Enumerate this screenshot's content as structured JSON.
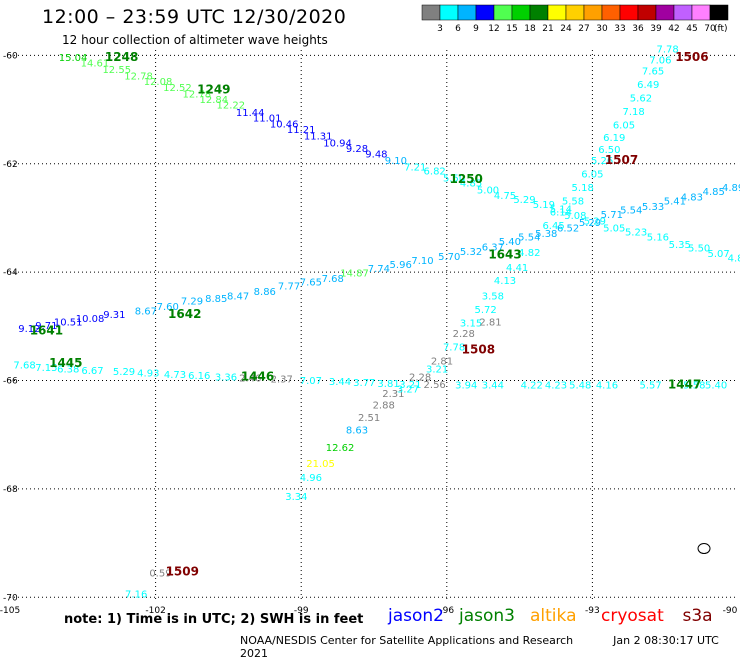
{
  "title": "12:00 – 23:59 UTC 12/30/2020",
  "subtitle": "12 hour collection of altimeter wave heights",
  "colorbar": {
    "unit": "(ft)",
    "ticks": [
      "3",
      "6",
      "9",
      "12",
      "15",
      "18",
      "21",
      "24",
      "27",
      "30",
      "33",
      "36",
      "39",
      "42",
      "45",
      "70"
    ],
    "colors": [
      "#808080",
      "#00ffff",
      "#00b4ff",
      "#0000ff",
      "#50ff50",
      "#00d000",
      "#008000",
      "#ffff00",
      "#ffd000",
      "#ffa000",
      "#ff6000",
      "#ff0000",
      "#c00000",
      "#a000a0",
      "#c060ff",
      "#ff80ff",
      "#000000"
    ]
  },
  "axes": {
    "lon_labels": [
      {
        "value": -105,
        "text": "-105"
      },
      {
        "value": -102,
        "text": "-102"
      },
      {
        "value": -99,
        "text": "-99"
      },
      {
        "value": -96,
        "text": "-96"
      },
      {
        "value": -93,
        "text": "-93"
      },
      {
        "value": -90,
        "text": "-90"
      }
    ],
    "lat_labels": [
      {
        "value": -60,
        "text": "-60"
      },
      {
        "value": -62,
        "text": "-62"
      },
      {
        "value": -64,
        "text": "-64"
      },
      {
        "value": -66,
        "text": "-66"
      },
      {
        "value": -68,
        "text": "-68"
      },
      {
        "value": -70,
        "text": "-70"
      }
    ],
    "lon_range": [
      -105,
      -90
    ],
    "lat_range": [
      -70.05,
      -59.9
    ]
  },
  "time_labels": [
    {
      "text": "1248",
      "lon": -102.7,
      "lat": -60.1,
      "color": "#008000"
    },
    {
      "text": "1249",
      "lon": -100.8,
      "lat": -60.7,
      "color": "#008000"
    },
    {
      "text": "1250",
      "lon": -95.6,
      "lat": -62.35,
      "color": "#008000"
    },
    {
      "text": "1643",
      "lon": -94.8,
      "lat": -63.75,
      "color": "#008000"
    },
    {
      "text": "1642",
      "lon": -101.4,
      "lat": -64.85,
      "color": "#008000"
    },
    {
      "text": "1641",
      "lon": -104.25,
      "lat": -65.15,
      "color": "#008000"
    },
    {
      "text": "1445",
      "lon": -103.85,
      "lat": -65.75,
      "color": "#008000"
    },
    {
      "text": "1446",
      "lon": -99.9,
      "lat": -66.0,
      "color": "#008000"
    },
    {
      "text": "1447",
      "lon": -91.1,
      "lat": -66.15,
      "color": "#008000"
    },
    {
      "text": "1506",
      "lon": -90.95,
      "lat": -60.1,
      "color": "#800000"
    },
    {
      "text": "1507",
      "lon": -92.4,
      "lat": -62.0,
      "color": "#800000"
    },
    {
      "text": "1508",
      "lon": -95.35,
      "lat": -65.5,
      "color": "#800000"
    },
    {
      "text": "1509",
      "lon": -101.45,
      "lat": -69.6,
      "color": "#800000"
    }
  ],
  "tracks": [
    {
      "name": "jason3-track-1",
      "points": [
        {
          "t": "15.04",
          "lon": -103.7,
          "lat": -60.1,
          "c": "#00d000"
        },
        {
          "t": "14.61",
          "lon": -103.25,
          "lat": -60.2,
          "c": "#50ff50"
        },
        {
          "t": "12.55",
          "lon": -102.8,
          "lat": -60.32,
          "c": "#50ff50"
        },
        {
          "t": "12.78",
          "lon": -102.35,
          "lat": -60.44,
          "c": "#50ff50"
        },
        {
          "t": "12.08",
          "lon": -101.95,
          "lat": -60.55,
          "c": "#50ff50"
        },
        {
          "t": "12.52",
          "lon": -101.55,
          "lat": -60.66,
          "c": "#50ff50"
        },
        {
          "t": "12.78",
          "lon": -101.15,
          "lat": -60.78,
          "c": "#50ff50"
        },
        {
          "t": "12.84",
          "lon": -100.8,
          "lat": -60.88,
          "c": "#50ff50"
        },
        {
          "t": "12.22",
          "lon": -100.45,
          "lat": -60.98,
          "c": "#50ff50"
        },
        {
          "t": "11.44",
          "lon": -100.05,
          "lat": -61.12,
          "c": "#0000ff"
        },
        {
          "t": "11.01",
          "lon": -99.7,
          "lat": -61.22,
          "c": "#0000ff"
        },
        {
          "t": "10.46",
          "lon": -99.35,
          "lat": -61.33,
          "c": "#0000ff"
        },
        {
          "t": "11.21",
          "lon": -99.0,
          "lat": -61.43,
          "c": "#0000ff"
        },
        {
          "t": "11.31",
          "lon": -98.65,
          "lat": -61.55,
          "c": "#0000ff"
        },
        {
          "t": "10.94",
          "lon": -98.25,
          "lat": -61.68,
          "c": "#0000ff"
        },
        {
          "t": "9.28",
          "lon": -97.85,
          "lat": -61.78,
          "c": "#0000ff"
        },
        {
          "t": "9.48",
          "lon": -97.45,
          "lat": -61.88,
          "c": "#0000ff"
        },
        {
          "t": "9.10",
          "lon": -97.05,
          "lat": -62.0,
          "c": "#00b4ff"
        },
        {
          "t": "7.21",
          "lon": -96.65,
          "lat": -62.12,
          "c": "#00ffff"
        },
        {
          "t": "6.82",
          "lon": -96.25,
          "lat": -62.2,
          "c": "#00ffff"
        },
        {
          "t": "5.50",
          "lon": -95.85,
          "lat": -62.33,
          "c": "#00ffff"
        },
        {
          "t": "4.85",
          "lon": -95.5,
          "lat": -62.42,
          "c": "#00ffff"
        },
        {
          "t": "5.00",
          "lon": -95.15,
          "lat": -62.55,
          "c": "#00ffff"
        },
        {
          "t": "4.75",
          "lon": -94.8,
          "lat": -62.65,
          "c": "#00ffff"
        },
        {
          "t": "5.29",
          "lon": -94.4,
          "lat": -62.72,
          "c": "#00ffff"
        },
        {
          "t": "5.19",
          "lon": -94.0,
          "lat": -62.82,
          "c": "#00ffff"
        },
        {
          "t": "5.14",
          "lon": -93.65,
          "lat": -62.9,
          "c": "#00ffff"
        },
        {
          "t": "5.08",
          "lon": -93.35,
          "lat": -63.02,
          "c": "#00ffff"
        },
        {
          "t": "5.29",
          "lon": -92.95,
          "lat": -63.12,
          "c": "#00ffff"
        },
        {
          "t": "5.05",
          "lon": -92.55,
          "lat": -63.25,
          "c": "#00ffff"
        },
        {
          "t": "5.23",
          "lon": -92.1,
          "lat": -63.32,
          "c": "#00ffff"
        },
        {
          "t": "5.16",
          "lon": -91.65,
          "lat": -63.42,
          "c": "#00ffff"
        },
        {
          "t": "5.35",
          "lon": -91.2,
          "lat": -63.55,
          "c": "#00ffff"
        },
        {
          "t": "5.50",
          "lon": -90.8,
          "lat": -63.62,
          "c": "#00ffff"
        },
        {
          "t": "5.07",
          "lon": -90.4,
          "lat": -63.72,
          "c": "#00ffff"
        },
        {
          "t": "4.8",
          "lon": -90.05,
          "lat": -63.8,
          "c": "#00ffff"
        }
      ]
    },
    {
      "name": "jason3-track-2",
      "points": [
        {
          "t": "9.12",
          "lon": -104.6,
          "lat": -65.1,
          "c": "#0000ff"
        },
        {
          "t": "9.71",
          "lon": -104.25,
          "lat": -65.05,
          "c": "#0000ff"
        },
        {
          "t": "10.51",
          "lon": -103.8,
          "lat": -64.98,
          "c": "#0000ff"
        },
        {
          "t": "10.08",
          "lon": -103.35,
          "lat": -64.92,
          "c": "#0000ff"
        },
        {
          "t": "9.31",
          "lon": -102.85,
          "lat": -64.85,
          "c": "#0000ff"
        },
        {
          "t": "8.67",
          "lon": -102.2,
          "lat": -64.78,
          "c": "#00b4ff"
        },
        {
          "t": "7.60",
          "lon": -101.75,
          "lat": -64.7,
          "c": "#00b4ff"
        },
        {
          "t": "7.29",
          "lon": -101.25,
          "lat": -64.6,
          "c": "#00b4ff"
        },
        {
          "t": "8.85",
          "lon": -100.75,
          "lat": -64.55,
          "c": "#00b4ff"
        },
        {
          "t": "8.47",
          "lon": -100.3,
          "lat": -64.5,
          "c": "#00b4ff"
        },
        {
          "t": "8.86",
          "lon": -99.75,
          "lat": -64.42,
          "c": "#00b4ff"
        },
        {
          "t": "7.77",
          "lon": -99.25,
          "lat": -64.32,
          "c": "#00b4ff"
        },
        {
          "t": "7.65",
          "lon": -98.8,
          "lat": -64.25,
          "c": "#00b4ff"
        },
        {
          "t": "7.68",
          "lon": -98.35,
          "lat": -64.18,
          "c": "#00b4ff"
        },
        {
          "t": "14.87",
          "lon": -97.9,
          "lat": -64.08,
          "c": "#50ff50"
        },
        {
          "t": "7.74",
          "lon": -97.4,
          "lat": -64.0,
          "c": "#00b4ff"
        },
        {
          "t": "5.96",
          "lon": -96.95,
          "lat": -63.92,
          "c": "#00b4ff"
        },
        {
          "t": "7.10",
          "lon": -96.5,
          "lat": -63.85,
          "c": "#00b4ff"
        },
        {
          "t": "5.70",
          "lon": -95.95,
          "lat": -63.78,
          "c": "#00b4ff"
        },
        {
          "t": "5.32",
          "lon": -95.5,
          "lat": -63.68,
          "c": "#00b4ff"
        },
        {
          "t": "6.37",
          "lon": -95.05,
          "lat": -63.6,
          "c": "#00b4ff"
        },
        {
          "t": "5.40",
          "lon": -94.7,
          "lat": -63.5,
          "c": "#00b4ff"
        },
        {
          "t": "5.54",
          "lon": -94.3,
          "lat": -63.42,
          "c": "#00b4ff"
        },
        {
          "t": "5.38",
          "lon": -93.95,
          "lat": -63.35,
          "c": "#00b4ff"
        },
        {
          "t": "6.52",
          "lon": -93.5,
          "lat": -63.25,
          "c": "#00b4ff"
        },
        {
          "t": "5.29",
          "lon": -93.05,
          "lat": -63.15,
          "c": "#00b4ff"
        },
        {
          "t": "5.71",
          "lon": -92.6,
          "lat": -63.0,
          "c": "#00b4ff"
        },
        {
          "t": "5.54",
          "lon": -92.2,
          "lat": -62.92,
          "c": "#00b4ff"
        },
        {
          "t": "5.33",
          "lon": -91.75,
          "lat": -62.85,
          "c": "#00b4ff"
        },
        {
          "t": "5.41",
          "lon": -91.3,
          "lat": -62.75,
          "c": "#00b4ff"
        },
        {
          "t": "4.83",
          "lon": -90.95,
          "lat": -62.68,
          "c": "#00b4ff"
        },
        {
          "t": "4.85",
          "lon": -90.5,
          "lat": -62.58,
          "c": "#00b4ff"
        },
        {
          "t": "4.89",
          "lon": -90.1,
          "lat": -62.5,
          "c": "#00b4ff"
        }
      ]
    },
    {
      "name": "jason3-track-3",
      "points": [
        {
          "t": "7.68",
          "lon": -104.7,
          "lat": -65.78,
          "c": "#00ffff"
        },
        {
          "t": "7.15",
          "lon": -104.25,
          "lat": -65.82,
          "c": "#00ffff"
        },
        {
          "t": "6.38",
          "lon": -103.8,
          "lat": -65.85,
          "c": "#00ffff"
        },
        {
          "t": "6.67",
          "lon": -103.3,
          "lat": -65.88,
          "c": "#00ffff"
        },
        {
          "t": "5.29",
          "lon": -102.65,
          "lat": -65.9,
          "c": "#00ffff"
        },
        {
          "t": "4.93",
          "lon": -102.15,
          "lat": -65.93,
          "c": "#00ffff"
        },
        {
          "t": "4.73",
          "lon": -101.6,
          "lat": -65.95,
          "c": "#00ffff"
        },
        {
          "t": "6.16",
          "lon": -101.1,
          "lat": -65.97,
          "c": "#00ffff"
        },
        {
          "t": "3.36",
          "lon": -100.55,
          "lat": -66.0,
          "c": "#00ffff"
        },
        {
          "t": "2.46",
          "lon": -100.05,
          "lat": -66.02,
          "c": "#808080"
        },
        {
          "t": "2.37",
          "lon": -99.4,
          "lat": -66.04,
          "c": "#808080"
        },
        {
          "t": "7.07",
          "lon": -98.8,
          "lat": -66.06,
          "c": "#00ffff"
        },
        {
          "t": "3.44",
          "lon": -98.2,
          "lat": -66.08,
          "c": "#00ffff"
        },
        {
          "t": "3.77",
          "lon": -97.7,
          "lat": -66.1,
          "c": "#00ffff"
        },
        {
          "t": "3.81",
          "lon": -97.2,
          "lat": -66.12,
          "c": "#00ffff"
        },
        {
          "t": "3.21",
          "lon": -96.75,
          "lat": -66.14,
          "c": "#00ffff"
        },
        {
          "t": "2.56",
          "lon": -96.25,
          "lat": -66.14,
          "c": "#808080"
        },
        {
          "t": "3.94",
          "lon": -95.6,
          "lat": -66.15,
          "c": "#00ffff"
        },
        {
          "t": "3.44",
          "lon": -95.05,
          "lat": -66.15,
          "c": "#00ffff"
        },
        {
          "t": "4.22",
          "lon": -94.25,
          "lat": -66.15,
          "c": "#00ffff"
        },
        {
          "t": "4.23",
          "lon": -93.75,
          "lat": -66.15,
          "c": "#00ffff"
        },
        {
          "t": "5.48",
          "lon": -93.25,
          "lat": -66.15,
          "c": "#00ffff"
        },
        {
          "t": "4.16",
          "lon": -92.7,
          "lat": -66.15,
          "c": "#00ffff"
        },
        {
          "t": "5.57",
          "lon": -91.8,
          "lat": -66.15,
          "c": "#00ffff"
        },
        {
          "t": "5.58",
          "lon": -90.9,
          "lat": -66.15,
          "c": "#00ffff"
        },
        {
          "t": "5.40",
          "lon": -90.45,
          "lat": -66.15,
          "c": "#00ffff"
        }
      ]
    },
    {
      "name": "cryosat-track-1",
      "points": [
        {
          "t": "7.16",
          "lon": -102.4,
          "lat": -70.0,
          "c": "#00ffff"
        },
        {
          "t": "0.59",
          "lon": -101.9,
          "lat": -69.62,
          "c": "#808080"
        },
        {
          "t": "3.34",
          "lon": -99.1,
          "lat": -68.2,
          "c": "#00ffff"
        },
        {
          "t": "4.96",
          "lon": -98.8,
          "lat": -67.85,
          "c": "#00ffff"
        },
        {
          "t": "21.05",
          "lon": -98.6,
          "lat": -67.6,
          "c": "#ffff00"
        },
        {
          "t": "12.62",
          "lon": -98.2,
          "lat": -67.3,
          "c": "#00d000"
        },
        {
          "t": "8.63",
          "lon": -97.85,
          "lat": -66.98,
          "c": "#00b4ff"
        },
        {
          "t": "2.51",
          "lon": -97.6,
          "lat": -66.75,
          "c": "#808080"
        },
        {
          "t": "2.88",
          "lon": -97.3,
          "lat": -66.52,
          "c": "#808080"
        },
        {
          "t": "2.31",
          "lon": -97.1,
          "lat": -66.3,
          "c": "#808080"
        },
        {
          "t": "3.27",
          "lon": -96.8,
          "lat": -66.22,
          "c": "#00ffff"
        },
        {
          "t": "2.28",
          "lon": -96.55,
          "lat": -66.0,
          "c": "#808080"
        },
        {
          "t": "2.81",
          "lon": -96.1,
          "lat": -65.7,
          "c": "#808080"
        },
        {
          "t": "3.21",
          "lon": -96.2,
          "lat": -65.85,
          "c": "#00ffff"
        },
        {
          "t": "7.78",
          "lon": -95.85,
          "lat": -65.45,
          "c": "#00ffff"
        },
        {
          "t": "2.28",
          "lon": -95.65,
          "lat": -65.2,
          "c": "#808080"
        },
        {
          "t": "3.15",
          "lon": -95.5,
          "lat": -65.0,
          "c": "#00ffff"
        },
        {
          "t": "5.72",
          "lon": -95.2,
          "lat": -64.75,
          "c": "#00ffff"
        },
        {
          "t": "2.81",
          "lon": -95.1,
          "lat": -64.98,
          "c": "#808080"
        },
        {
          "t": "3.58",
          "lon": -95.05,
          "lat": -64.5,
          "c": "#00ffff"
        },
        {
          "t": "4.13",
          "lon": -94.8,
          "lat": -64.22,
          "c": "#00ffff"
        },
        {
          "t": "4.41",
          "lon": -94.55,
          "lat": -63.98,
          "c": "#00ffff"
        },
        {
          "t": "4.82",
          "lon": -94.3,
          "lat": -63.7,
          "c": "#00ffff"
        },
        {
          "t": "6.45",
          "lon": -93.8,
          "lat": -63.2,
          "c": "#00ffff"
        },
        {
          "t": "6.14",
          "lon": -93.65,
          "lat": -62.95,
          "c": "#00ffff"
        },
        {
          "t": "5.58",
          "lon": -93.4,
          "lat": -62.75,
          "c": "#00ffff"
        },
        {
          "t": "5.18",
          "lon": -93.2,
          "lat": -62.5,
          "c": "#00ffff"
        },
        {
          "t": "6.05",
          "lon": -93.0,
          "lat": -62.25,
          "c": "#00ffff"
        },
        {
          "t": "5.26",
          "lon": -92.8,
          "lat": -62.0,
          "c": "#00ffff"
        },
        {
          "t": "6.50",
          "lon": -92.65,
          "lat": -61.8,
          "c": "#00ffff"
        },
        {
          "t": "6.19",
          "lon": -92.55,
          "lat": -61.58,
          "c": "#00ffff"
        },
        {
          "t": "6.05",
          "lon": -92.35,
          "lat": -61.35,
          "c": "#00ffff"
        },
        {
          "t": "7.18",
          "lon": -92.15,
          "lat": -61.1,
          "c": "#00ffff"
        },
        {
          "t": "5.62",
          "lon": -92.0,
          "lat": -60.85,
          "c": "#00ffff"
        },
        {
          "t": "6.49",
          "lon": -91.85,
          "lat": -60.6,
          "c": "#00ffff"
        },
        {
          "t": "7.65",
          "lon": -91.75,
          "lat": -60.35,
          "c": "#00ffff"
        },
        {
          "t": "7.06",
          "lon": -91.6,
          "lat": -60.15,
          "c": "#00ffff"
        },
        {
          "t": "7.78",
          "lon": -91.45,
          "lat": -59.95,
          "c": "#00ffff"
        }
      ]
    }
  ],
  "note": "note:  1) Time is in UTC;  2) SWH is in feet",
  "legend": [
    {
      "name": "jason2",
      "color": "#0000ff"
    },
    {
      "name": "jason3",
      "color": "#008000"
    },
    {
      "name": "altika",
      "color": "#ffa000"
    },
    {
      "name": "cryosat",
      "color": "#ff0000"
    },
    {
      "name": "s3a",
      "color": "#800000"
    }
  ],
  "footer": {
    "org": "NOAA/NESDIS Center for Satellite Applications and Research",
    "date": "Jan  2 08:30:17 UTC 2021"
  }
}
